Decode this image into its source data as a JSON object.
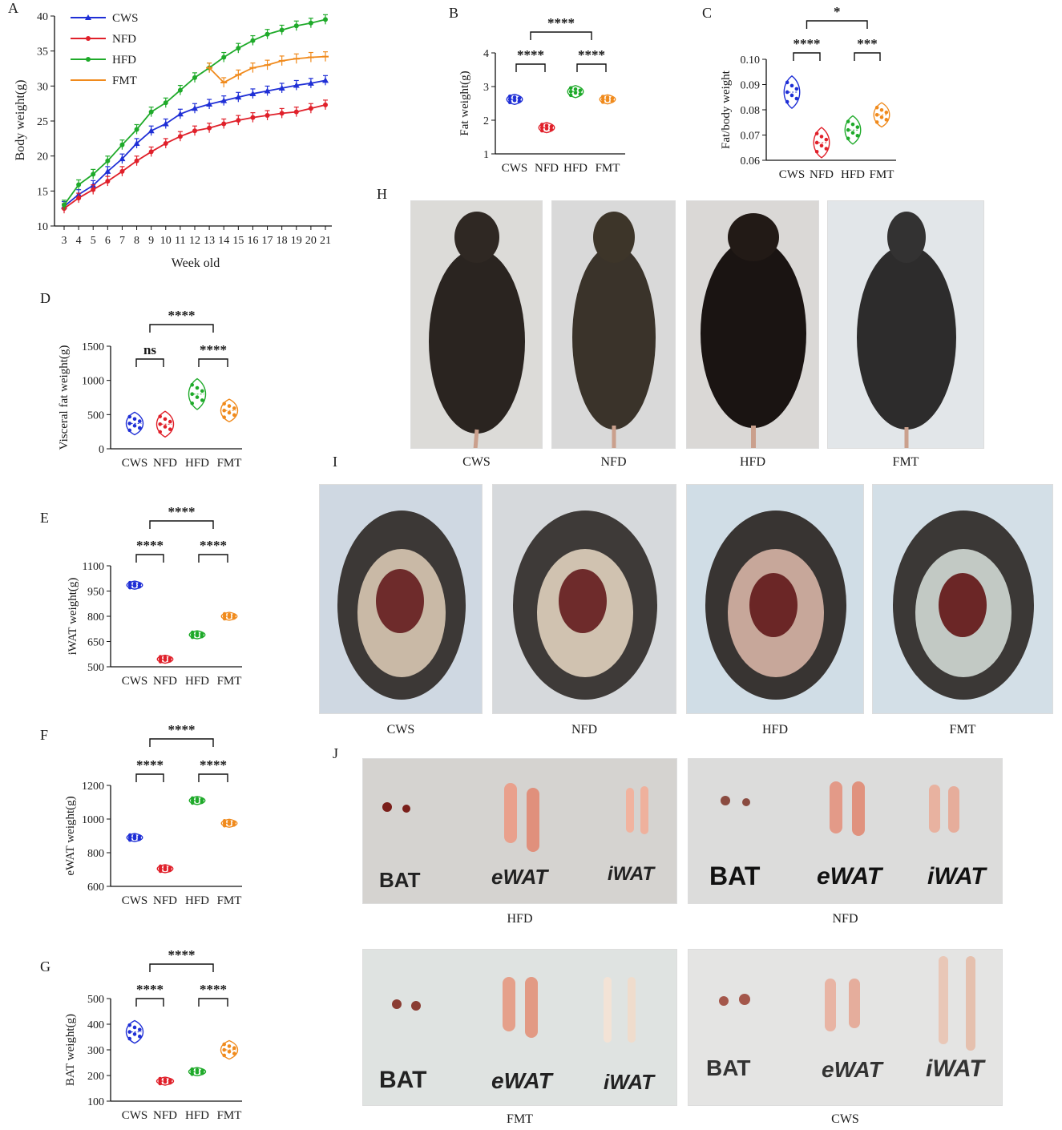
{
  "groups": [
    "CWS",
    "NFD",
    "HFD",
    "FMT"
  ],
  "colors": {
    "CWS": "#1f2fd6",
    "NFD": "#e0202a",
    "HFD": "#1faa2a",
    "FMT": "#f08a1c"
  },
  "panels": {
    "A": {
      "letter": "A",
      "xlabel": "Week old",
      "ylabel": "Body weight(g)",
      "weeks": [
        3,
        4,
        5,
        6,
        7,
        8,
        9,
        10,
        11,
        12,
        13,
        14,
        15,
        16,
        17,
        18,
        19,
        20,
        21
      ],
      "yticks": [
        10,
        15,
        20,
        25,
        30,
        35,
        40
      ],
      "series": [
        {
          "name": "CWS",
          "values": [
            12.8,
            14.5,
            15.8,
            17.8,
            19.6,
            21.8,
            23.6,
            24.6,
            26.0,
            26.8,
            27.4,
            27.9,
            28.4,
            28.9,
            29.3,
            29.7,
            30.1,
            30.4,
            30.8
          ]
        },
        {
          "name": "NFD",
          "values": [
            12.5,
            14.0,
            15.2,
            16.4,
            17.8,
            19.3,
            20.6,
            21.8,
            22.8,
            23.6,
            24.0,
            24.6,
            25.1,
            25.5,
            25.8,
            26.1,
            26.3,
            26.8,
            27.3
          ]
        },
        {
          "name": "HFD",
          "values": [
            13.0,
            15.9,
            17.4,
            19.3,
            21.6,
            23.8,
            26.3,
            27.6,
            29.4,
            31.2,
            32.6,
            34.1,
            35.4,
            36.5,
            37.4,
            38.0,
            38.6,
            39.0,
            39.5
          ]
        },
        {
          "name": "FMT",
          "values": [
            null,
            null,
            null,
            null,
            null,
            null,
            null,
            null,
            null,
            null,
            32.6,
            30.5,
            31.6,
            32.6,
            33.0,
            33.6,
            33.9,
            34.1,
            34.2
          ]
        }
      ]
    },
    "B": {
      "letter": "B",
      "ylabel": "Fat weight(g)",
      "yticks": [
        1,
        2,
        3,
        4
      ],
      "values": [
        2.62,
        1.78,
        2.85,
        2.62
      ],
      "sig_adjacent": [
        "****",
        "",
        "****"
      ],
      "sig_mid": "****"
    },
    "C": {
      "letter": "C",
      "ylabel": "Fat/body weight",
      "yticks": [
        "0.06",
        "0.07",
        "0.08",
        "0.09",
        "0.10"
      ],
      "values": [
        0.087,
        0.067,
        0.072,
        0.078
      ],
      "sig_adjacent": [
        "****",
        "",
        "***"
      ],
      "sig_mid": "*"
    },
    "D": {
      "letter": "D",
      "ylabel": "Visceral fat weight(g)",
      "yticks": [
        0,
        500,
        1000,
        1500
      ],
      "values": [
        370,
        360,
        800,
        560
      ],
      "sig_adjacent": [
        "ns",
        "",
        "****"
      ],
      "sig_mid": "****"
    },
    "E": {
      "letter": "E",
      "ylabel": "iWAT weight(g)",
      "yticks": [
        500,
        650,
        800,
        950,
        1100
      ],
      "values": [
        985,
        545,
        690,
        800
      ],
      "sig_adjacent": [
        "****",
        "",
        "****"
      ],
      "sig_mid": "****"
    },
    "F": {
      "letter": "F",
      "ylabel": "eWAT weight(g)",
      "yticks": [
        600,
        800,
        1000,
        1200
      ],
      "values": [
        890,
        705,
        1110,
        975
      ],
      "sig_adjacent": [
        "****",
        "",
        "****"
      ],
      "sig_mid": "****"
    },
    "G": {
      "letter": "G",
      "ylabel": "BAT weight(g)",
      "yticks": [
        100,
        200,
        300,
        400,
        500
      ],
      "values": [
        370,
        178,
        215,
        300
      ],
      "sig_adjacent": [
        "****",
        "",
        "****"
      ],
      "sig_mid": "****"
    }
  },
  "photos": {
    "H": {
      "letter": "H",
      "labels": [
        "CWS",
        "NFD",
        "HFD",
        "FMT"
      ]
    },
    "I": {
      "letter": "I",
      "labels": [
        "CWS",
        "NFD",
        "HFD",
        "FMT"
      ]
    },
    "J": {
      "letter": "J",
      "tissue": [
        "BAT",
        "eWAT",
        "iWAT"
      ],
      "labels": [
        "HFD",
        "NFD",
        "FMT",
        "CWS"
      ]
    }
  }
}
